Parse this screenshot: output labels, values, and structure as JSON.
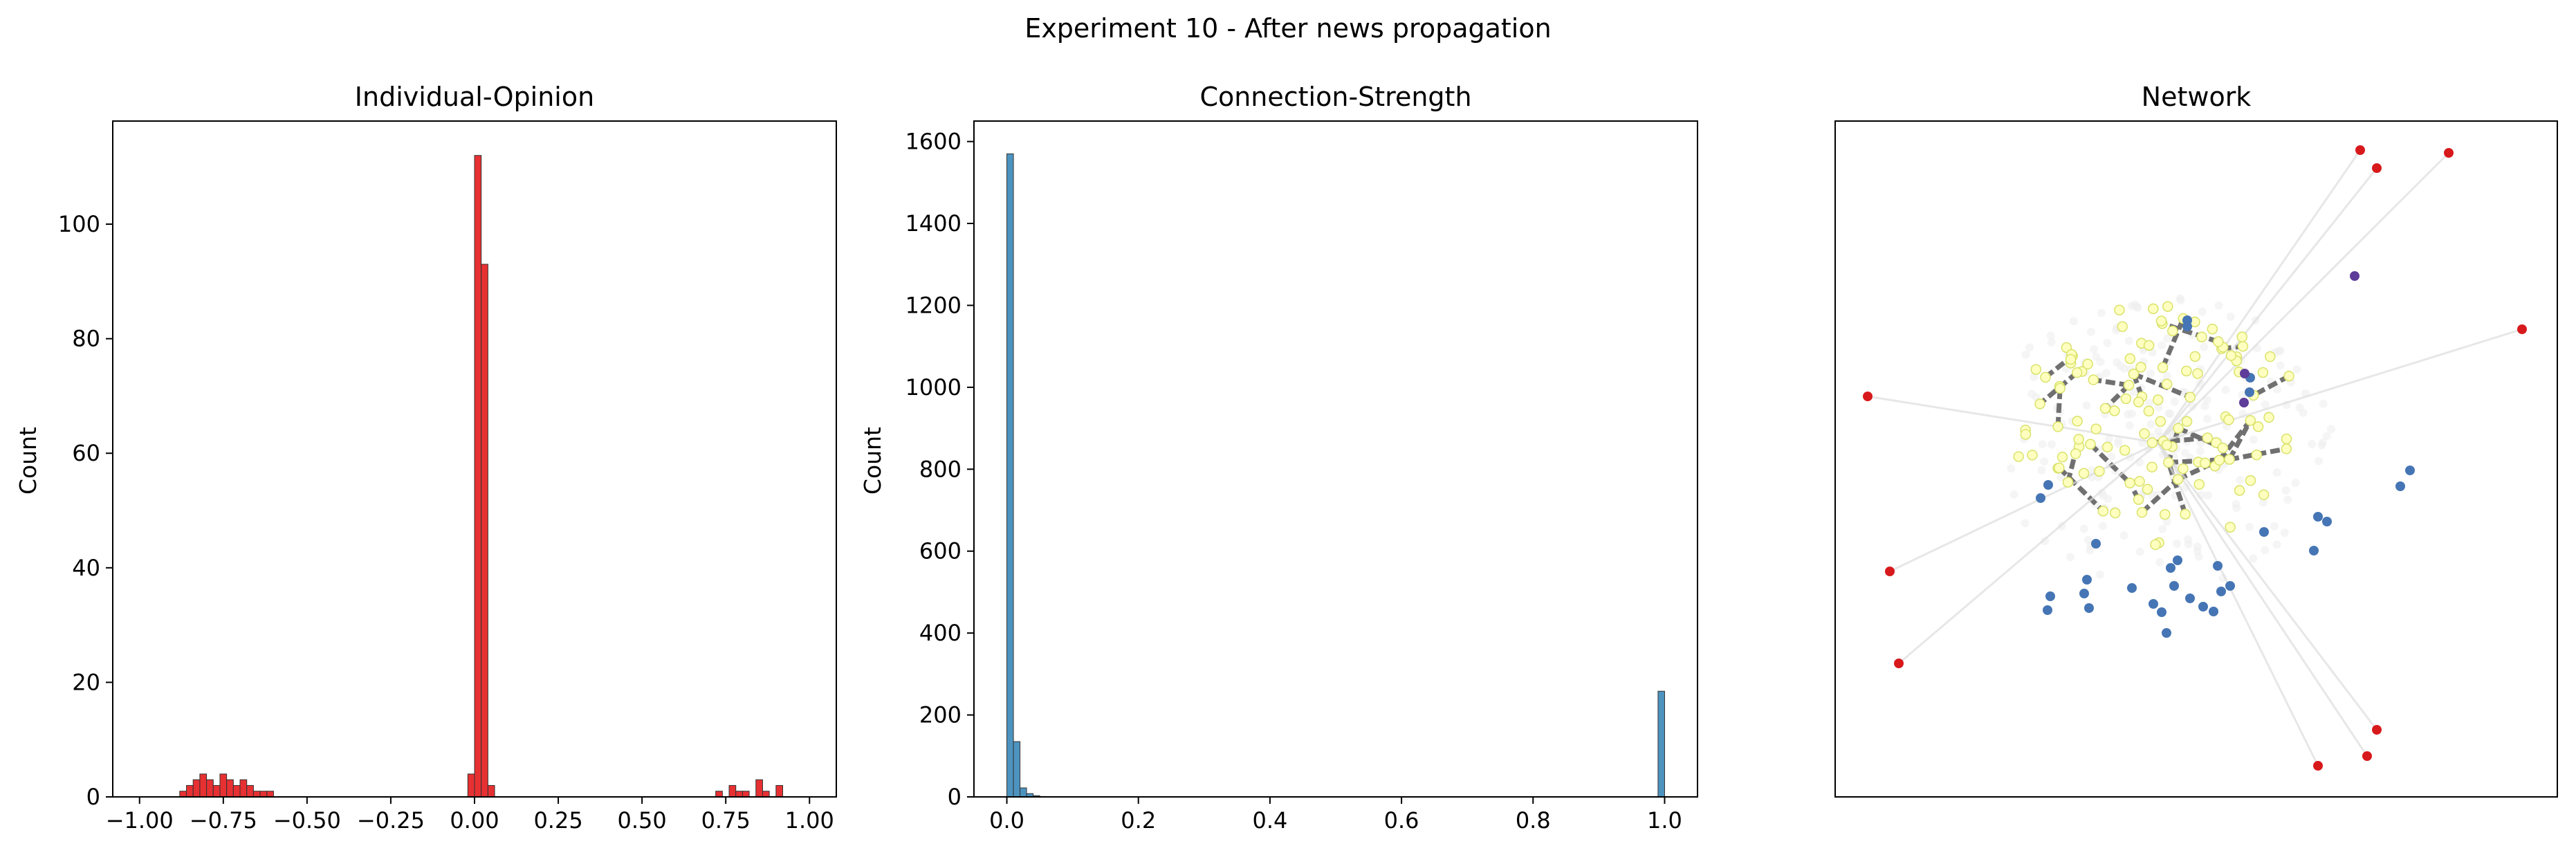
{
  "figure": {
    "suptitle": "Experiment 10 - After news propagation"
  },
  "chart_data": [
    {
      "type": "bar",
      "title": "Individual-Opinion",
      "xlabel": "",
      "ylabel": "Count",
      "xlim": [
        -1.08,
        1.08
      ],
      "ylim": [
        0,
        118
      ],
      "xticks": [
        "-1.00",
        "-0.75",
        "-0.50",
        "-0.25",
        "0.00",
        "0.25",
        "0.50",
        "0.75",
        "1.00"
      ],
      "yticks": [
        "0",
        "20",
        "40",
        "60",
        "80",
        "100"
      ],
      "bar_color": "#e41a1c",
      "bin_width": 0.02,
      "bins": [
        {
          "x": -0.88,
          "count": 1
        },
        {
          "x": -0.86,
          "count": 2
        },
        {
          "x": -0.84,
          "count": 3
        },
        {
          "x": -0.82,
          "count": 4
        },
        {
          "x": -0.8,
          "count": 3
        },
        {
          "x": -0.78,
          "count": 2
        },
        {
          "x": -0.76,
          "count": 4
        },
        {
          "x": -0.74,
          "count": 3
        },
        {
          "x": -0.72,
          "count": 2
        },
        {
          "x": -0.7,
          "count": 3
        },
        {
          "x": -0.68,
          "count": 2
        },
        {
          "x": -0.66,
          "count": 1
        },
        {
          "x": -0.64,
          "count": 1
        },
        {
          "x": -0.62,
          "count": 1
        },
        {
          "x": -0.02,
          "count": 4
        },
        {
          "x": 0.0,
          "count": 112
        },
        {
          "x": 0.02,
          "count": 93
        },
        {
          "x": 0.04,
          "count": 2
        },
        {
          "x": 0.72,
          "count": 1
        },
        {
          "x": 0.76,
          "count": 2
        },
        {
          "x": 0.78,
          "count": 1
        },
        {
          "x": 0.8,
          "count": 1
        },
        {
          "x": 0.84,
          "count": 3
        },
        {
          "x": 0.86,
          "count": 1
        },
        {
          "x": 0.9,
          "count": 2
        }
      ]
    },
    {
      "type": "bar",
      "title": "Connection-Strength",
      "xlabel": "",
      "ylabel": "Count",
      "xlim": [
        -0.05,
        1.05
      ],
      "ylim": [
        0,
        1650
      ],
      "xticks": [
        "0.0",
        "0.2",
        "0.4",
        "0.6",
        "0.8",
        "1.0"
      ],
      "yticks": [
        "0",
        "200",
        "400",
        "600",
        "800",
        "1000",
        "1200",
        "1400",
        "1600"
      ],
      "bar_color": "#3a87b8",
      "bin_width": 0.01,
      "bins": [
        {
          "x": 0.0,
          "count": 1570
        },
        {
          "x": 0.01,
          "count": 135
        },
        {
          "x": 0.02,
          "count": 22
        },
        {
          "x": 0.03,
          "count": 8
        },
        {
          "x": 0.04,
          "count": 3
        },
        {
          "x": 0.05,
          "count": 1
        },
        {
          "x": 0.99,
          "count": 258
        }
      ]
    },
    {
      "type": "scatter",
      "title": "Network",
      "xlabel": "",
      "ylabel": "",
      "grid": false,
      "node_colors": {
        "extreme": "#d7191c",
        "moderate": "#4575b4",
        "neutral": "#ffffbf",
        "mixed": "#5e3c99"
      }
    }
  ]
}
